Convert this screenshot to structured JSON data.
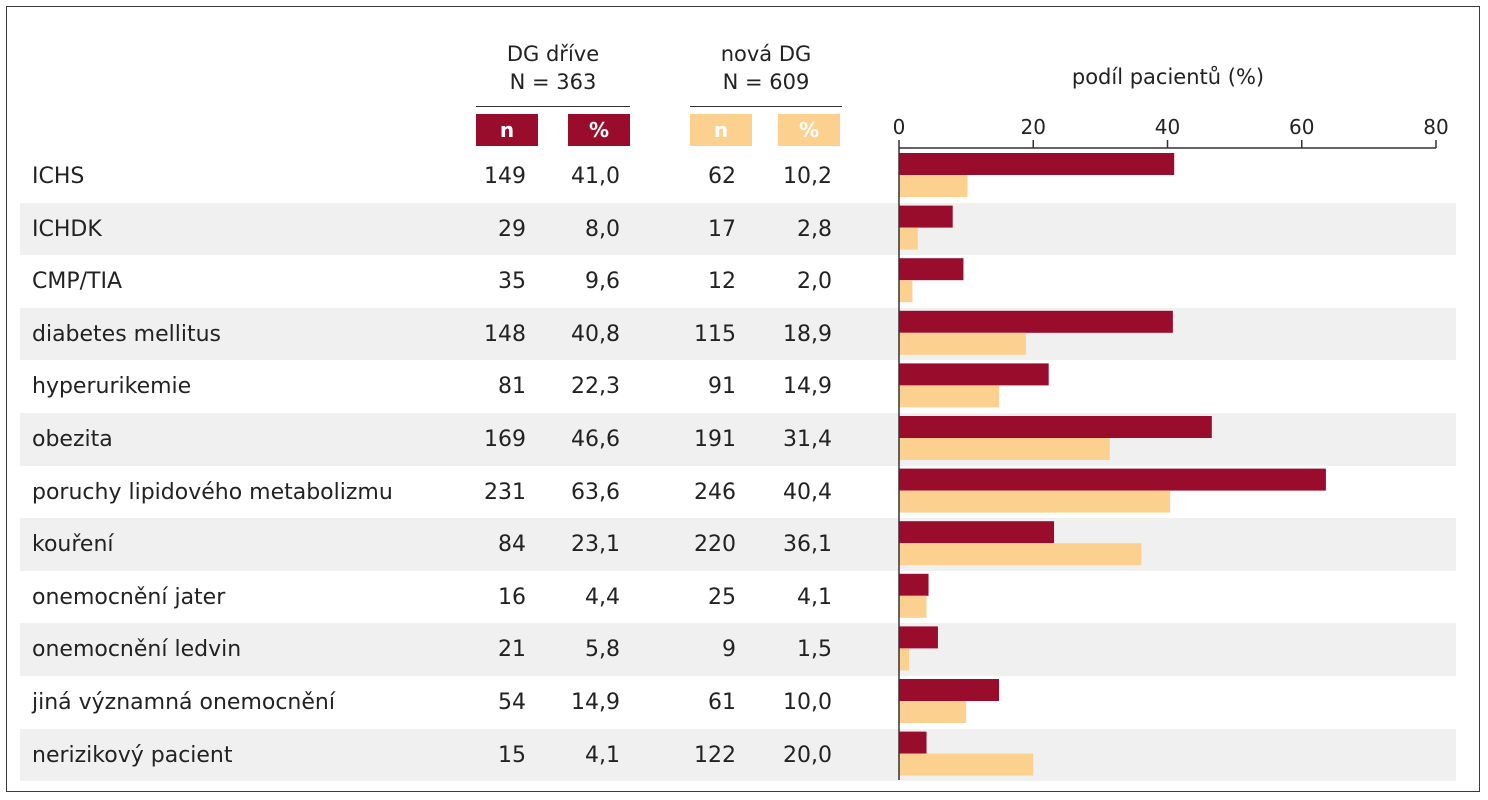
{
  "columns": {
    "group1": {
      "label": "DG dříve",
      "n_label": "N = 363"
    },
    "group2": {
      "label": "nová DG",
      "n_label": "N = 609"
    },
    "n_header": "n",
    "pct_header": "%"
  },
  "colors": {
    "dg_drive": "#9a0c2c",
    "nova_dg": "#fcd08f",
    "stripe": "#f0f0f0"
  },
  "rows": [
    {
      "label": "ICHS",
      "n1": "149",
      "p1": "41,0",
      "n2": "62",
      "p2": "10,2"
    },
    {
      "label": "ICHDK",
      "n1": "29",
      "p1": "8,0",
      "n2": "17",
      "p2": "2,8"
    },
    {
      "label": "CMP/TIA",
      "n1": "35",
      "p1": "9,6",
      "n2": "12",
      "p2": "2,0"
    },
    {
      "label": "diabetes mellitus",
      "n1": "148",
      "p1": "40,8",
      "n2": "115",
      "p2": "18,9"
    },
    {
      "label": "hyperurikemie",
      "n1": "81",
      "p1": "22,3",
      "n2": "91",
      "p2": "14,9"
    },
    {
      "label": "obezita",
      "n1": "169",
      "p1": "46,6",
      "n2": "191",
      "p2": "31,4"
    },
    {
      "label": "poruchy lipidového metabolizmu",
      "n1": "231",
      "p1": "63,6",
      "n2": "246",
      "p2": "40,4"
    },
    {
      "label": "kouření",
      "n1": "84",
      "p1": "23,1",
      "n2": "220",
      "p2": "36,1"
    },
    {
      "label": "onemocnění jater",
      "n1": "16",
      "p1": "4,4",
      "n2": "25",
      "p2": "4,1"
    },
    {
      "label": "onemocnění ledvin",
      "n1": "21",
      "p1": "5,8",
      "n2": "9",
      "p2": "1,5"
    },
    {
      "label": "jiná významná onemocnění",
      "n1": "54",
      "p1": "14,9",
      "n2": "61",
      "p2": "10,0"
    },
    {
      "label": "nerizikový pacient",
      "n1": "15",
      "p1": "4,1",
      "n2": "122",
      "p2": "20,0"
    }
  ],
  "chart_data": {
    "type": "bar",
    "orientation": "horizontal",
    "categories": [
      "ICHS",
      "ICHDK",
      "CMP/TIA",
      "diabetes mellitus",
      "hyperurikemie",
      "obezita",
      "poruchy lipidového metabolizmu",
      "kouření",
      "onemocnění jater",
      "onemocnění ledvin",
      "jiná významná onemocnění",
      "nerizikový pacient"
    ],
    "series": [
      {
        "name": "DG dříve",
        "values": [
          41.0,
          8.0,
          9.6,
          40.8,
          22.3,
          46.6,
          63.6,
          23.1,
          4.4,
          5.8,
          14.9,
          4.1
        ]
      },
      {
        "name": "nová DG",
        "values": [
          10.2,
          2.8,
          2.0,
          18.9,
          14.9,
          31.4,
          40.4,
          36.1,
          4.1,
          1.5,
          10.0,
          20.0
        ]
      }
    ],
    "xlabel": "podíl pacientů (%)",
    "xlim": [
      0,
      80
    ],
    "xticks": [
      0,
      20,
      40,
      60,
      80
    ]
  }
}
